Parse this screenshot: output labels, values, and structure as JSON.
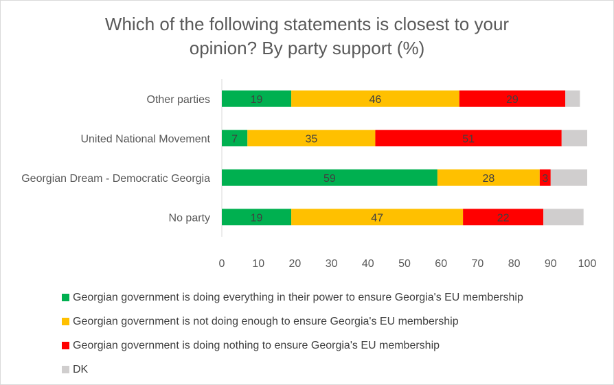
{
  "chart_data": {
    "type": "bar",
    "orientation": "horizontal",
    "stacked": true,
    "title": "Which of the following statements is closest to your opinion? By party support (%)",
    "categories": [
      "Other parties",
      "United National Movement",
      "Georgian Dream - Democratic Georgia",
      "No party"
    ],
    "series": [
      {
        "name": "Georgian government is doing everything in their power to ensure Georgia's EU membership",
        "color": "#00b050",
        "values": [
          19,
          7,
          59,
          19
        ]
      },
      {
        "name": "Georgian government is not doing enough to ensure Georgia's EU membership",
        "color": "#ffc000",
        "values": [
          46,
          35,
          28,
          47
        ]
      },
      {
        "name": "Georgian government is doing nothing to ensure Georgia's EU membership",
        "color": "#ff0000",
        "values": [
          29,
          51,
          3,
          22
        ]
      },
      {
        "name": "DK",
        "color": "#d0cece",
        "values": [
          4,
          7,
          10,
          11
        ]
      }
    ],
    "xlim": [
      0,
      100
    ],
    "xticks": [
      "0",
      "10",
      "20",
      "30",
      "40",
      "50",
      "60",
      "70",
      "80",
      "90",
      "100"
    ],
    "grid": false,
    "legend_position": "bottom",
    "data_labels_for_series": [
      0,
      1,
      2
    ]
  }
}
